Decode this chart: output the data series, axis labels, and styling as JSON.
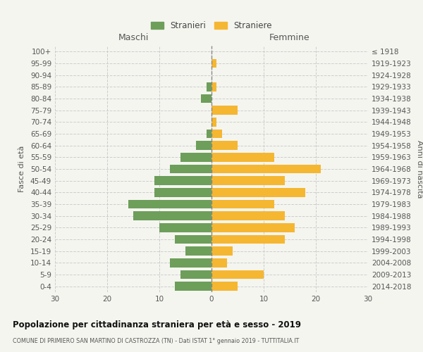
{
  "age_groups": [
    "0-4",
    "5-9",
    "10-14",
    "15-19",
    "20-24",
    "25-29",
    "30-34",
    "35-39",
    "40-44",
    "45-49",
    "50-54",
    "55-59",
    "60-64",
    "65-69",
    "70-74",
    "75-79",
    "80-84",
    "85-89",
    "90-94",
    "95-99",
    "100+"
  ],
  "birth_years": [
    "2014-2018",
    "2009-2013",
    "2004-2008",
    "1999-2003",
    "1994-1998",
    "1989-1993",
    "1984-1988",
    "1979-1983",
    "1974-1978",
    "1969-1973",
    "1964-1968",
    "1959-1963",
    "1954-1958",
    "1949-1953",
    "1944-1948",
    "1939-1943",
    "1934-1938",
    "1929-1933",
    "1924-1928",
    "1919-1923",
    "≤ 1918"
  ],
  "males": [
    7,
    6,
    8,
    5,
    7,
    10,
    15,
    16,
    11,
    11,
    8,
    6,
    3,
    1,
    0,
    0,
    2,
    1,
    0,
    0,
    0
  ],
  "females": [
    5,
    10,
    3,
    4,
    14,
    16,
    14,
    12,
    18,
    14,
    21,
    12,
    5,
    2,
    1,
    5,
    0,
    1,
    0,
    1,
    0
  ],
  "male_color": "#6d9e5a",
  "female_color": "#f5b731",
  "background_color": "#f5f5f0",
  "grid_color": "#cccccc",
  "title": "Popolazione per cittadinanza straniera per età e sesso - 2019",
  "subtitle": "COMUNE DI PRIMIERO SAN MARTINO DI CASTROZZA (TN) - Dati ISTAT 1° gennaio 2019 - TUTTITALIA.IT",
  "ylabel_left": "Fasce di età",
  "ylabel_right": "Anni di nascita",
  "xlabel_maschi": "Maschi",
  "xlabel_femmine": "Femmine",
  "legend_male": "Stranieri",
  "legend_female": "Straniere",
  "xlim": 30
}
